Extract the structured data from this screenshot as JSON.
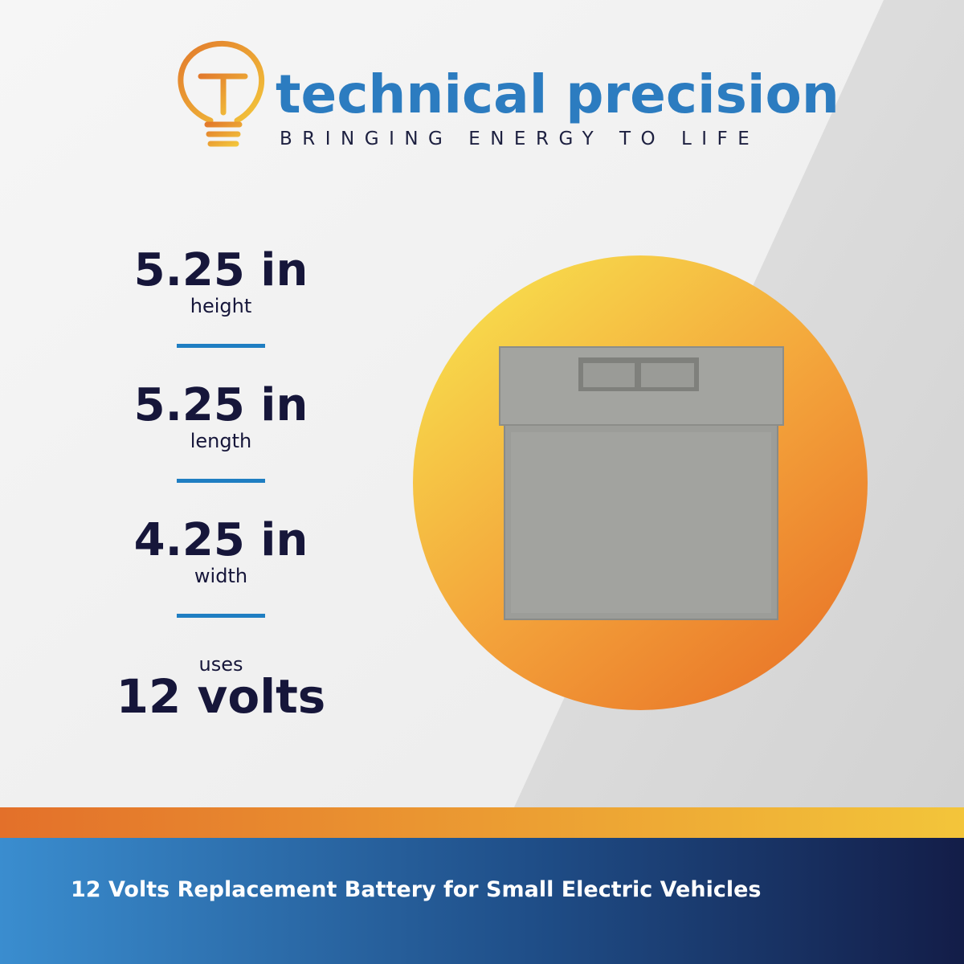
{
  "brand": {
    "name": "technical precision",
    "tagline": "BRINGING ENERGY TO LIFE"
  },
  "specs": [
    {
      "value": "5.25 in",
      "label": "height"
    },
    {
      "value": "5.25 in",
      "label": "length"
    },
    {
      "value": "4.25 in",
      "label": "width"
    }
  ],
  "voltage": {
    "label": "uses",
    "value": "12 volts"
  },
  "footer": {
    "text": "12 Volts Replacement Battery for Small Electric Vehicles"
  }
}
